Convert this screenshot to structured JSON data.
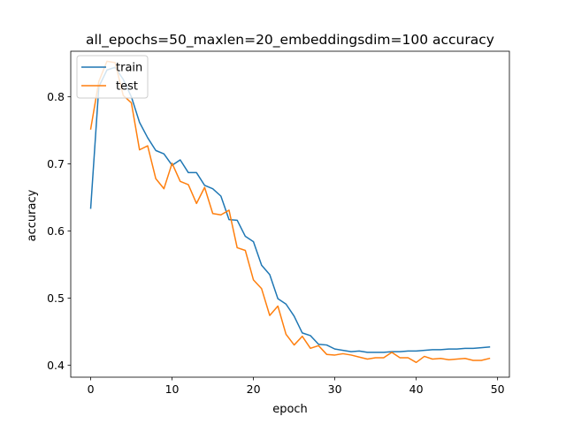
{
  "chart_data": {
    "type": "line",
    "title": "all_epochs=50_maxlen=20_embeddingsdim=100 accuracy",
    "xlabel": "epoch",
    "ylabel": "accuracy",
    "xlim": [
      -2.45,
      51.45
    ],
    "ylim": [
      0.382,
      0.868
    ],
    "xticks": [
      0,
      10,
      20,
      30,
      40,
      50
    ],
    "yticks": [
      0.4,
      0.5,
      0.6,
      0.7,
      0.8
    ],
    "ytick_labels": [
      "0.4",
      "0.5",
      "0.6",
      "0.7",
      "0.8"
    ],
    "grid": false,
    "legend_position": "upper-left",
    "x": [
      0,
      1,
      2,
      3,
      4,
      5,
      6,
      7,
      8,
      9,
      10,
      11,
      12,
      13,
      14,
      15,
      16,
      17,
      18,
      19,
      20,
      21,
      22,
      23,
      24,
      25,
      26,
      27,
      28,
      29,
      30,
      31,
      32,
      33,
      34,
      35,
      36,
      37,
      38,
      39,
      40,
      41,
      42,
      43,
      44,
      45,
      46,
      47,
      48,
      49
    ],
    "series": [
      {
        "name": "train",
        "color": "#1f77b4",
        "values": [
          0.634,
          0.815,
          0.84,
          0.844,
          0.826,
          0.8,
          0.762,
          0.739,
          0.72,
          0.715,
          0.698,
          0.706,
          0.687,
          0.687,
          0.668,
          0.663,
          0.652,
          0.617,
          0.616,
          0.592,
          0.584,
          0.549,
          0.535,
          0.499,
          0.491,
          0.473,
          0.448,
          0.444,
          0.431,
          0.43,
          0.424,
          0.422,
          0.42,
          0.421,
          0.419,
          0.419,
          0.419,
          0.42,
          0.42,
          0.421,
          0.421,
          0.422,
          0.423,
          0.423,
          0.424,
          0.424,
          0.425,
          0.425,
          0.426,
          0.427
        ]
      },
      {
        "name": "test",
        "color": "#ff7f0e",
        "values": [
          0.752,
          0.823,
          0.853,
          0.851,
          0.802,
          0.791,
          0.721,
          0.727,
          0.678,
          0.663,
          0.701,
          0.674,
          0.669,
          0.641,
          0.665,
          0.626,
          0.624,
          0.631,
          0.575,
          0.571,
          0.527,
          0.514,
          0.474,
          0.488,
          0.446,
          0.43,
          0.443,
          0.425,
          0.429,
          0.416,
          0.415,
          0.417,
          0.415,
          0.412,
          0.409,
          0.411,
          0.411,
          0.419,
          0.411,
          0.411,
          0.404,
          0.413,
          0.409,
          0.41,
          0.408,
          0.409,
          0.41,
          0.407,
          0.407,
          0.41
        ]
      }
    ]
  }
}
